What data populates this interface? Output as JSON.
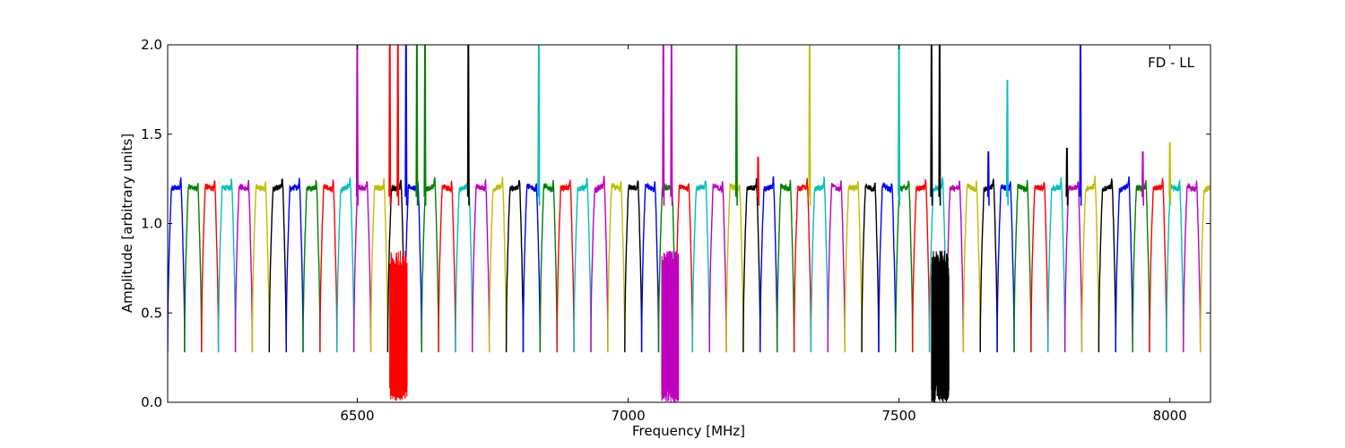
{
  "chart_data": {
    "type": "line",
    "title": "",
    "xlabel": "Frequency [MHz]",
    "ylabel": "Amplitude [arbitrary units]",
    "xlim": [
      6150,
      8075
    ],
    "ylim": [
      0.0,
      2.0
    ],
    "xticks": [
      6500,
      7000,
      7500,
      8000
    ],
    "xtick_labels": [
      "6500",
      "7000",
      "7500",
      "8000"
    ],
    "yticks": [
      0.0,
      0.5,
      1.0,
      1.5,
      2.0
    ],
    "ytick_labels": [
      "0.0",
      "0.5",
      "1.0",
      "1.5",
      "2.0"
    ],
    "grid": false,
    "legend": "none",
    "annotation": "FD - LL",
    "annotation_position": "top-right",
    "n_channels": 62,
    "channel_start_mhz": 6150,
    "channel_width_mhz": 31.25,
    "baseline_amplitude": 1.2,
    "edge_minimum": 0.28,
    "color_cycle": [
      "#0000ff",
      "#008000",
      "#ff0000",
      "#00bfbf",
      "#bf00bf",
      "#bfbf00",
      "#000000"
    ],
    "rfi_spikes": [
      {
        "x": 6500,
        "peak": 2.0,
        "color": "#bf00bf"
      },
      {
        "x": 6560,
        "peak": 2.0,
        "color": "#ff0000"
      },
      {
        "x": 6575,
        "peak": 2.0,
        "color": "#ff0000"
      },
      {
        "x": 6590,
        "peak": 2.0,
        "color": "#0000ff"
      },
      {
        "x": 6610,
        "peak": 2.0,
        "color": "#008000"
      },
      {
        "x": 6625,
        "peak": 2.0,
        "color": "#008000"
      },
      {
        "x": 6705,
        "peak": 2.0,
        "color": "#000000"
      },
      {
        "x": 6835,
        "peak": 2.0,
        "color": "#00bfbf"
      },
      {
        "x": 7065,
        "peak": 2.0,
        "color": "#bf00bf"
      },
      {
        "x": 7080,
        "peak": 2.0,
        "color": "#bf00bf"
      },
      {
        "x": 7200,
        "peak": 2.0,
        "color": "#008000"
      },
      {
        "x": 7335,
        "peak": 2.0,
        "color": "#bfbf00"
      },
      {
        "x": 7500,
        "peak": 2.0,
        "color": "#00bfbf"
      },
      {
        "x": 7560,
        "peak": 2.0,
        "color": "#000000"
      },
      {
        "x": 7575,
        "peak": 2.0,
        "color": "#000000"
      },
      {
        "x": 7700,
        "peak": 1.8,
        "color": "#00bfbf"
      },
      {
        "x": 7835,
        "peak": 2.0,
        "color": "#0000ff"
      },
      {
        "x": 7665,
        "peak": 1.4,
        "color": "#0000ff"
      },
      {
        "x": 7810,
        "peak": 1.42,
        "color": "#000000"
      },
      {
        "x": 7240,
        "peak": 1.37,
        "color": "#ff0000"
      },
      {
        "x": 7950,
        "peak": 1.4,
        "color": "#bf00bf"
      },
      {
        "x": 8000,
        "peak": 1.45,
        "color": "#bfbf00"
      }
    ],
    "noise_blocks": [
      {
        "x_start": 6560,
        "x_end": 6592,
        "y_min": 0.0,
        "y_max": 0.85,
        "color": "#ff0000"
      },
      {
        "x_start": 7062,
        "x_end": 7093,
        "y_min": 0.0,
        "y_max": 0.85,
        "color": "#bf00bf"
      },
      {
        "x_start": 7560,
        "x_end": 7592,
        "y_min": 0.0,
        "y_max": 0.85,
        "color": "#000000"
      }
    ]
  }
}
